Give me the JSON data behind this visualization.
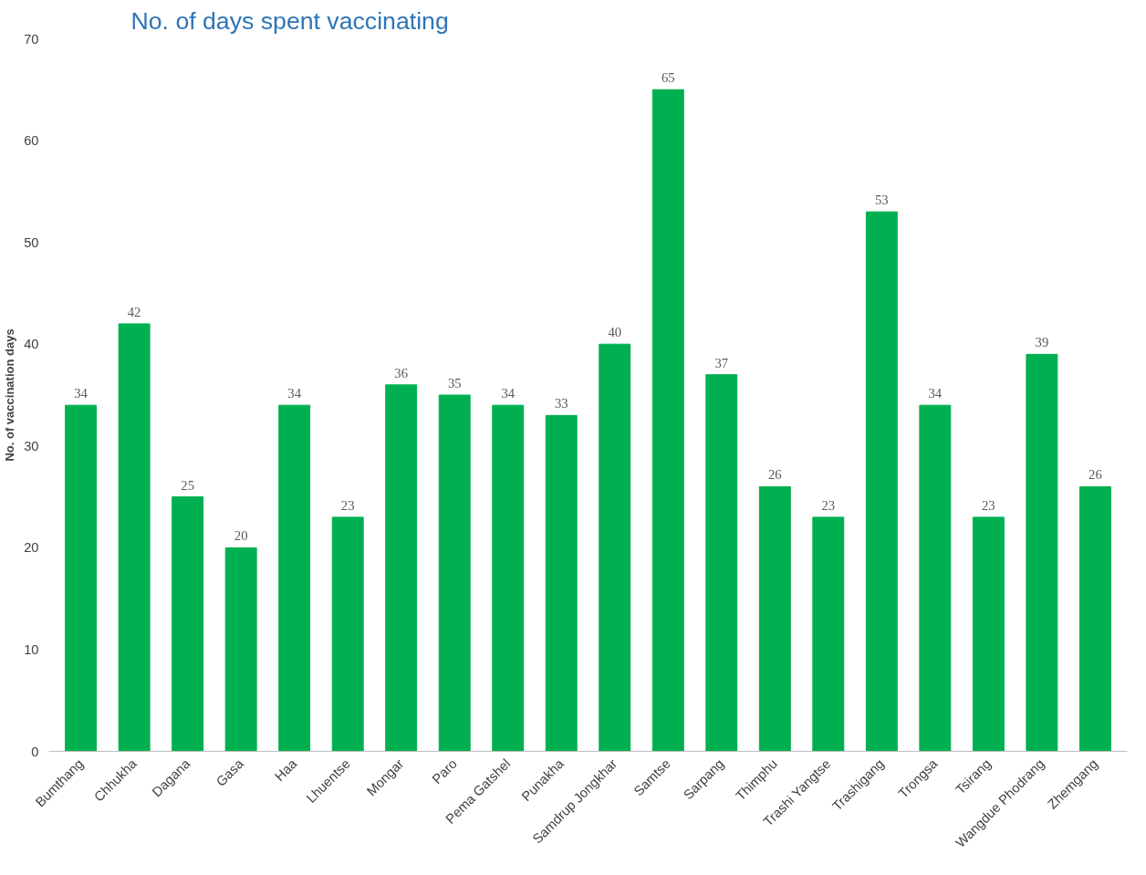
{
  "chart_data": {
    "type": "bar",
    "title": "No. of days spent vaccinating",
    "ylabel": "No. of vaccination days",
    "categories": [
      "Bumthang",
      "Chhukha",
      "Dagana",
      "Gasa",
      "Haa",
      "Lhuentse",
      "Mongar",
      "Paro",
      "Pema Gatshel",
      "Punakha",
      "Samdrup Jongkhar",
      "Samtse",
      "Sarpang",
      "Thimphu",
      "Trashi Yangtse",
      "Trashigang",
      "Trongsa",
      "Tsirang",
      "Wangdue Phodrang",
      "Zhemgang"
    ],
    "values": [
      34,
      42,
      25,
      20,
      34,
      23,
      36,
      35,
      34,
      33,
      40,
      65,
      37,
      26,
      23,
      53,
      34,
      23,
      39,
      26
    ],
    "color": "#00b050",
    "ylim": [
      0,
      70
    ],
    "yticks": [
      0,
      10,
      20,
      30,
      40,
      50,
      60,
      70
    ],
    "grid": false,
    "data_labels": true
  }
}
